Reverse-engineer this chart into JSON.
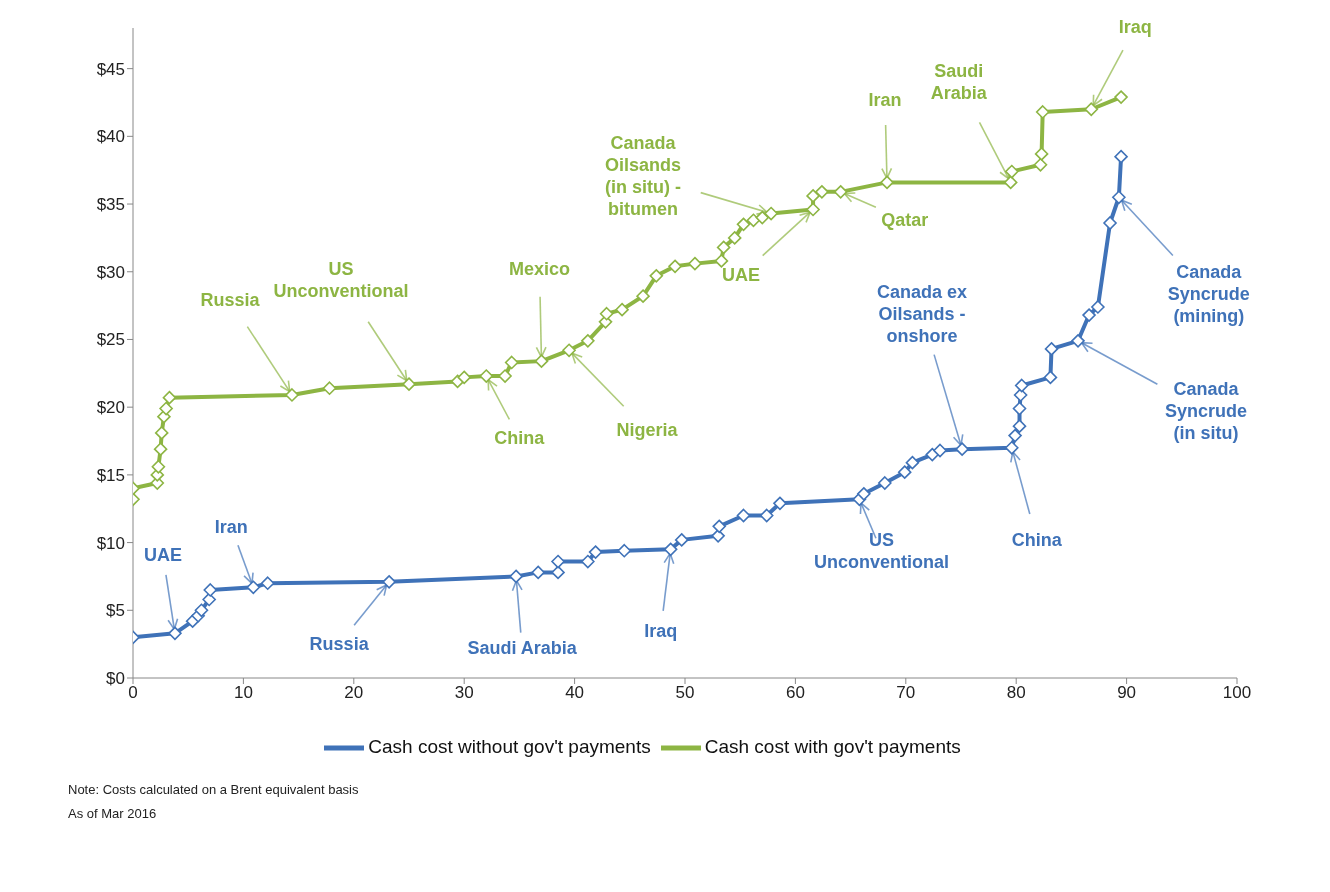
{
  "chart_data": {
    "type": "line",
    "xlim": [
      0,
      100
    ],
    "xticks": [
      0,
      10,
      20,
      30,
      40,
      50,
      60,
      70,
      80,
      90,
      100
    ],
    "ylim": [
      0,
      48
    ],
    "yticks": [
      {
        "value": 0,
        "label": "$0"
      },
      {
        "value": 5,
        "label": "$5"
      },
      {
        "value": 10,
        "label": "$10"
      },
      {
        "value": 15,
        "label": "$15"
      },
      {
        "value": 20,
        "label": "$20"
      },
      {
        "value": 25,
        "label": "$25"
      },
      {
        "value": 30,
        "label": "$30"
      },
      {
        "value": 35,
        "label": "$35"
      },
      {
        "value": 40,
        "label": "$40"
      },
      {
        "value": 45,
        "label": "$45"
      }
    ],
    "marker": "diamond",
    "line_style": "solid",
    "legend": "bottom",
    "series": [
      {
        "name": "Cash cost without gov't payments",
        "color": "#3f72b8",
        "x": [
          0,
          3.8,
          5.4,
          5.9,
          6.2,
          6.9,
          7.0,
          10.9,
          12.2,
          23.2,
          34.7,
          36.7,
          38.5,
          38.5,
          41.2,
          41.9,
          44.5,
          48.7,
          49.7,
          53,
          53.1,
          55.3,
          57.4,
          58.6,
          65.8,
          66.2,
          68.1,
          69.9,
          70.6,
          72.4,
          73.1,
          75.1,
          79.6,
          79.9,
          80.3,
          80.3,
          80.4,
          80.5,
          83.1,
          83.2,
          85.6,
          86.6,
          87.4,
          88.5,
          89.3,
          89.5
        ],
        "values": [
          3.0,
          3.3,
          4.2,
          4.6,
          5.0,
          5.8,
          6.5,
          6.7,
          7.0,
          7.1,
          7.5,
          7.8,
          7.8,
          8.6,
          8.6,
          9.3,
          9.4,
          9.5,
          10.2,
          10.5,
          11.2,
          12.0,
          12.0,
          12.9,
          13.2,
          13.6,
          14.4,
          15.2,
          15.9,
          16.5,
          16.8,
          16.9,
          17.0,
          17.9,
          18.6,
          19.9,
          20.9,
          21.6,
          22.2,
          24.3,
          24.9,
          26.8,
          27.4,
          33.6,
          35.5,
          38.5
        ]
      },
      {
        "name": "Cash cost with gov't payments",
        "color": "#8db543",
        "x": [
          0,
          0,
          2.2,
          2.2,
          2.3,
          2.5,
          2.6,
          2.8,
          3.0,
          3.3,
          14.4,
          17.8,
          25.0,
          29.4,
          30.0,
          32.0,
          33.7,
          34.3,
          37.0,
          39.5,
          41.2,
          42.8,
          42.9,
          44.3,
          46.2,
          47.4,
          49.1,
          50.9,
          53.3,
          53.5,
          54.5,
          55.3,
          56.2,
          57.0,
          57.8,
          61.6,
          61.6,
          62.4,
          64.1,
          68.3,
          79.5,
          79.6,
          82.2,
          82.3,
          82.4,
          86.8,
          89.5
        ],
        "values": [
          13.2,
          14.0,
          14.4,
          15.0,
          15.6,
          16.9,
          18.1,
          19.3,
          19.9,
          20.7,
          20.9,
          21.4,
          21.7,
          21.9,
          22.2,
          22.3,
          22.3,
          23.3,
          23.4,
          24.2,
          24.9,
          26.3,
          26.9,
          27.2,
          28.2,
          29.7,
          30.4,
          30.6,
          30.8,
          31.8,
          32.5,
          33.5,
          33.8,
          34.0,
          34.3,
          34.6,
          35.6,
          35.9,
          35.9,
          36.6,
          36.6,
          37.4,
          37.9,
          38.7,
          41.8,
          42.0,
          42.9
        ]
      }
    ],
    "annotations": [
      {
        "text": "UAE",
        "x": 3.8,
        "y": 3.3
      },
      {
        "text": "Iran",
        "x": 10.9,
        "y": 6.7
      },
      {
        "text": "Russia",
        "x": 23.2,
        "y": 7.1
      },
      {
        "text": "Saudi Arabia",
        "x": 34.7,
        "y": 7.5
      },
      {
        "text": "Iraq",
        "x": 48.7,
        "y": 9.5
      },
      {
        "text": "US Unconventional",
        "x": 65.8,
        "y": 13.2
      },
      {
        "text": "Canada ex Oilsands - onshore",
        "x": 75.1,
        "y": 16.9
      },
      {
        "text": "China",
        "x": 79.6,
        "y": 17.0
      },
      {
        "text": "Canada Syncrude (in situ)",
        "x": 85.6,
        "y": 24.9
      },
      {
        "text": "Canada Syncrude (mining)",
        "x": 89.3,
        "y": 35.5
      },
      {
        "text": "Russia",
        "x": 14.4,
        "y": 20.9
      },
      {
        "text": "US Unconventional",
        "x": 25.0,
        "y": 21.7
      },
      {
        "text": "China",
        "x": 32.0,
        "y": 22.3
      },
      {
        "text": "Mexico",
        "x": 37.0,
        "y": 23.4
      },
      {
        "text": "Nigeria",
        "x": 39.5,
        "y": 24.2
      },
      {
        "text": "Canada Oilsands (in situ) - bitumen",
        "x": 57.8,
        "y": 34.3
      },
      {
        "text": "UAE",
        "x": 61.6,
        "y": 34.6
      },
      {
        "text": "Qatar",
        "x": 64.1,
        "y": 35.9
      },
      {
        "text": "Iran",
        "x": 68.3,
        "y": 36.6
      },
      {
        "text": "Saudi Arabia",
        "x": 79.5,
        "y": 36.6
      },
      {
        "text": "Iraq",
        "x": 86.8,
        "y": 42.0
      },
      "Note: Costs calculated on a Brent equivalent basis",
      "As of Mar 2016"
    ]
  }
}
